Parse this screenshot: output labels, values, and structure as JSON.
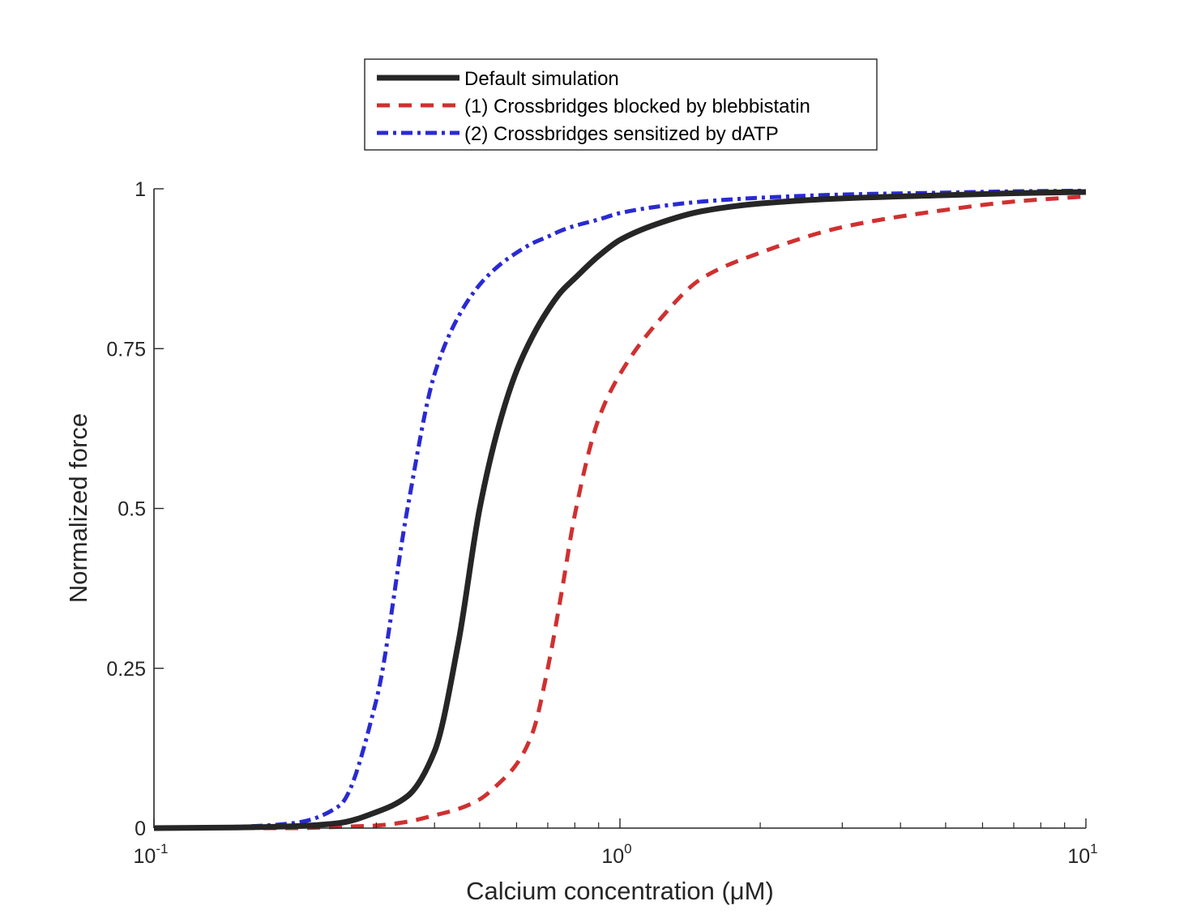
{
  "chart_data": {
    "type": "line",
    "title": "",
    "xlabel": "Calcium concentration (μM)",
    "ylabel": "Normalized force",
    "xscale": "log",
    "xlim": [
      0.1,
      10
    ],
    "ylim": [
      0,
      1
    ],
    "grid": false,
    "legend_position": "top-center",
    "x_ticks": [
      {
        "value": 0.1,
        "base": "10",
        "exp": "-1"
      },
      {
        "value": 1,
        "base": "10",
        "exp": "0"
      },
      {
        "value": 10,
        "base": "10",
        "exp": "1"
      }
    ],
    "y_ticks": [
      {
        "value": 0,
        "label": "0"
      },
      {
        "value": 0.25,
        "label": "0.25"
      },
      {
        "value": 0.5,
        "label": "0.5"
      },
      {
        "value": 0.75,
        "label": "0.75"
      },
      {
        "value": 1,
        "label": "1"
      }
    ],
    "x": [
      0.1,
      0.15,
      0.2,
      0.25,
      0.3,
      0.35,
      0.4,
      0.45,
      0.5,
      0.55,
      0.6,
      0.65,
      0.7,
      0.75,
      0.8,
      0.9,
      1.0,
      1.2,
      1.5,
      2,
      3,
      5,
      7,
      10
    ],
    "series": [
      {
        "name": "Default simulation",
        "color": "#262626",
        "style": "solid",
        "values": [
          0.0,
          0.001,
          0.003,
          0.008,
          0.025,
          0.05,
          0.12,
          0.29,
          0.5,
          0.63,
          0.715,
          0.77,
          0.81,
          0.84,
          0.86,
          0.895,
          0.92,
          0.945,
          0.965,
          0.977,
          0.985,
          0.99,
          0.993,
          0.995
        ]
      },
      {
        "name": "(1) Crossbridges blocked by blebbistatin",
        "color": "#d03030",
        "style": "dashed",
        "values": [
          0.0,
          0.0,
          0.0,
          0.002,
          0.004,
          0.01,
          0.02,
          0.03,
          0.045,
          0.07,
          0.1,
          0.15,
          0.25,
          0.37,
          0.49,
          0.64,
          0.71,
          0.79,
          0.86,
          0.9,
          0.94,
          0.967,
          0.98,
          0.988
        ]
      },
      {
        "name": "(2) Crossbridges sensitized by dATP",
        "color": "#2a2ad2",
        "style": "dashdot",
        "values": [
          0.0,
          0.002,
          0.008,
          0.035,
          0.2,
          0.5,
          0.71,
          0.8,
          0.85,
          0.88,
          0.9,
          0.915,
          0.925,
          0.935,
          0.942,
          0.952,
          0.962,
          0.972,
          0.98,
          0.986,
          0.991,
          0.994,
          0.996,
          0.997
        ]
      }
    ]
  }
}
